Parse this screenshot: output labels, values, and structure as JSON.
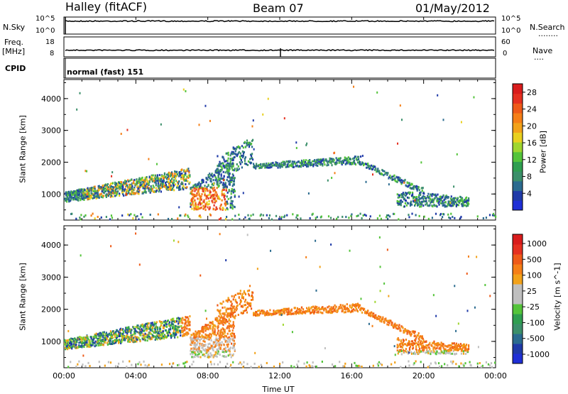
{
  "header": {
    "station": "Halley (fitACF)",
    "beam": "Beam 07",
    "date": "01/May/2012"
  },
  "left_labels": {
    "nsky": "N.Sky",
    "freq": "Freq.",
    "freq_unit": "[MHz]",
    "cpid": "CPID"
  },
  "right_labels": {
    "nsearch": "N.Search",
    "nave": "Nave",
    "nsearch_dots": "........",
    "nave_dots": "...."
  },
  "strip_ticks": {
    "sky_top": "10^5",
    "sky_bottom": "10^0",
    "search_top": "10^5",
    "search_bottom": "10^0",
    "freq_top": "18",
    "freq_bottom": "8",
    "nave_top": "60",
    "nave_bottom": "0"
  },
  "cpid_text": "normal (fast) 151",
  "colors": {
    "frame": "#000000",
    "ground_scatter": "#bfbfbf"
  },
  "chart_data": [
    {
      "type": "heatmap",
      "name": "power",
      "ylabel": "Slant Range [km]",
      "colorbar_label": "Power [dB]",
      "xlim": [
        "00:00",
        "00:00"
      ],
      "ylim": [
        180,
        4600
      ],
      "y_ticks": [
        "1000",
        "2000",
        "3000",
        "4000"
      ],
      "colorbar_ticks": [
        "4",
        "8",
        "12",
        "16",
        "20",
        "24",
        "28"
      ],
      "colorbar_range": [
        0,
        30
      ],
      "colorbar_colors": [
        "#1f2fd6",
        "#1f3aa8",
        "#2b6b8f",
        "#3b8f6a",
        "#2f9e50",
        "#54c43a",
        "#9fd62f",
        "#e8d01f",
        "#f2a21a",
        "#f57f17",
        "#ee5a18",
        "#e53020",
        "#d91c1c"
      ]
    },
    {
      "type": "heatmap",
      "name": "velocity",
      "ylabel": "Slant Range [km]",
      "colorbar_label": "Velocity [m s^-1]",
      "xlabel": "Time UT",
      "x_ticks": [
        "00:00",
        "04:00",
        "08:00",
        "12:00",
        "16:00",
        "20:00",
        "00:00"
      ],
      "ylim": [
        180,
        4600
      ],
      "y_ticks": [
        "1000",
        "2000",
        "3000",
        "4000"
      ],
      "colorbar_ticks": [
        "1000",
        "500",
        "100",
        "25",
        "-25",
        "-100",
        "-500",
        "-1000"
      ],
      "colorbar_colors": [
        "#1f2fd6",
        "#1f3aa8",
        "#2b6b8f",
        "#3b8f6a",
        "#2f9e50",
        "#54c43a",
        "#bfbfbf",
        "#bfbfbf",
        "#f2a21a",
        "#f57f17",
        "#ee5a18",
        "#e53020",
        "#d91c1c"
      ]
    }
  ]
}
